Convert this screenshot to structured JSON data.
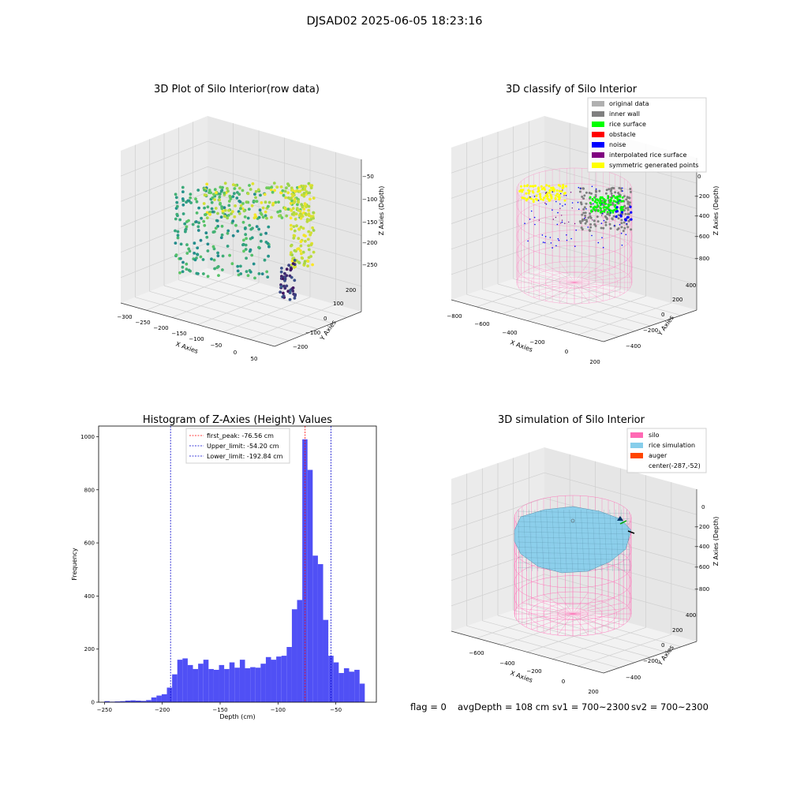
{
  "figure_title": "DJSAD02 2025-06-05 18:23:16",
  "footer": {
    "flag": "flag = 0",
    "avg_depth": "avgDepth = 108 cm",
    "sv1": "sv1 = 700~2300",
    "sv2": "sv2 = 700~2300"
  },
  "colors": {
    "hist_bar": "#5050f5",
    "first_peak": "#ff0000",
    "limits": "#0000cc",
    "silo_wire": "#ff69b4",
    "rice": "#87ceeb",
    "auger": "#ff4500",
    "classify_original": "#b0b0b0",
    "classify_inner_wall": "#808080",
    "classify_rice_surface": "#00ff00",
    "classify_obstacle": "#ff0000",
    "classify_noise": "#0000ff",
    "classify_interpolated": "#800080",
    "classify_symmetric": "#ffff00"
  },
  "chart_data": [
    {
      "type": "scatter",
      "projection": "3d",
      "title": "3D Plot of Silo Interior(row data)",
      "xlabel": "X Axies",
      "ylabel": "Y Axies",
      "zlabel": "Z Axies (Depth)",
      "x_ticks": [
        "−300",
        "−250",
        "−200",
        "−150",
        "−100",
        "−50",
        "0",
        "50"
      ],
      "y_ticks": [
        "−200",
        "−100",
        "0",
        "100",
        "200"
      ],
      "z_ticks": [
        "−50",
        "−100",
        "−150",
        "−200",
        "−250"
      ],
      "colormap": "viridis",
      "grid": true
    },
    {
      "type": "scatter",
      "projection": "3d",
      "title": "3D classify of Silo Interior",
      "xlabel": "X Axies",
      "ylabel": "Y Axies",
      "zlabel": "Z Axies (Depth)",
      "x_ticks": [
        "−800",
        "−600",
        "−400",
        "−200",
        "0",
        "200"
      ],
      "y_ticks": [
        "−400",
        "−200",
        "0",
        "200",
        "400"
      ],
      "z_ticks": [
        "0",
        "−200",
        "−400",
        "−600",
        "−800"
      ],
      "legend": [
        "original data",
        "inner wall",
        "rice surface",
        "obstacle",
        "noise",
        "interpolated rice surface",
        "symmetric generated points"
      ],
      "legend_position": "upper-right",
      "grid": true
    },
    {
      "type": "bar",
      "title": "Histogram of Z-Axies (Height) Values",
      "xlabel": "Depth (cm)",
      "ylabel": "Frequency",
      "xlim": [
        -255,
        -15
      ],
      "ylim": [
        0,
        1040
      ],
      "x_ticks": [
        -250,
        -200,
        -150,
        -100,
        -50
      ],
      "x_tick_labels": [
        "−250",
        "−200",
        "−150",
        "−100",
        "−50"
      ],
      "y_ticks": [
        0,
        200,
        400,
        600,
        800,
        1000
      ],
      "y_tick_labels": [
        "0",
        "200",
        "400",
        "600",
        "800",
        "1000"
      ],
      "bin_start": -250,
      "bin_width": 4.5,
      "values": [
        4,
        2,
        3,
        4,
        6,
        7,
        6,
        5,
        8,
        18,
        25,
        30,
        55,
        105,
        160,
        165,
        140,
        125,
        145,
        160,
        125,
        122,
        140,
        125,
        150,
        130,
        160,
        128,
        132,
        130,
        145,
        170,
        160,
        172,
        175,
        208,
        350,
        385,
        990,
        875,
        552,
        520,
        310,
        175,
        150,
        110,
        128,
        115,
        122,
        70
      ],
      "vlines": [
        {
          "x": -76.56,
          "label": "first_peak: -76.56 cm",
          "style": "dashed",
          "color": "red"
        },
        {
          "x": -54.2,
          "label": "Upper_limit: -54.20 cm",
          "style": "dashed",
          "color": "blue"
        },
        {
          "x": -192.84,
          "label": "Lower_limit: -192.84 cm",
          "style": "dashed",
          "color": "blue"
        }
      ],
      "legend_position": "top-center",
      "grid": false
    },
    {
      "type": "area",
      "projection": "3d",
      "title": "3D simulation of Silo Interior",
      "xlabel": "X Axies",
      "ylabel": "Y Axies",
      "zlabel": "Z Axies (Depth)",
      "x_ticks": [
        "−600",
        "−400",
        "−200",
        "0",
        "200"
      ],
      "y_ticks": [
        "−400",
        "−200",
        "0",
        "200",
        "400"
      ],
      "z_ticks": [
        "0",
        "−200",
        "−400",
        "−600",
        "−800"
      ],
      "legend": [
        "silo",
        "rice simulation",
        "auger",
        "center(-287,-52)"
      ],
      "legend_position": "upper-right",
      "grid": true
    }
  ]
}
